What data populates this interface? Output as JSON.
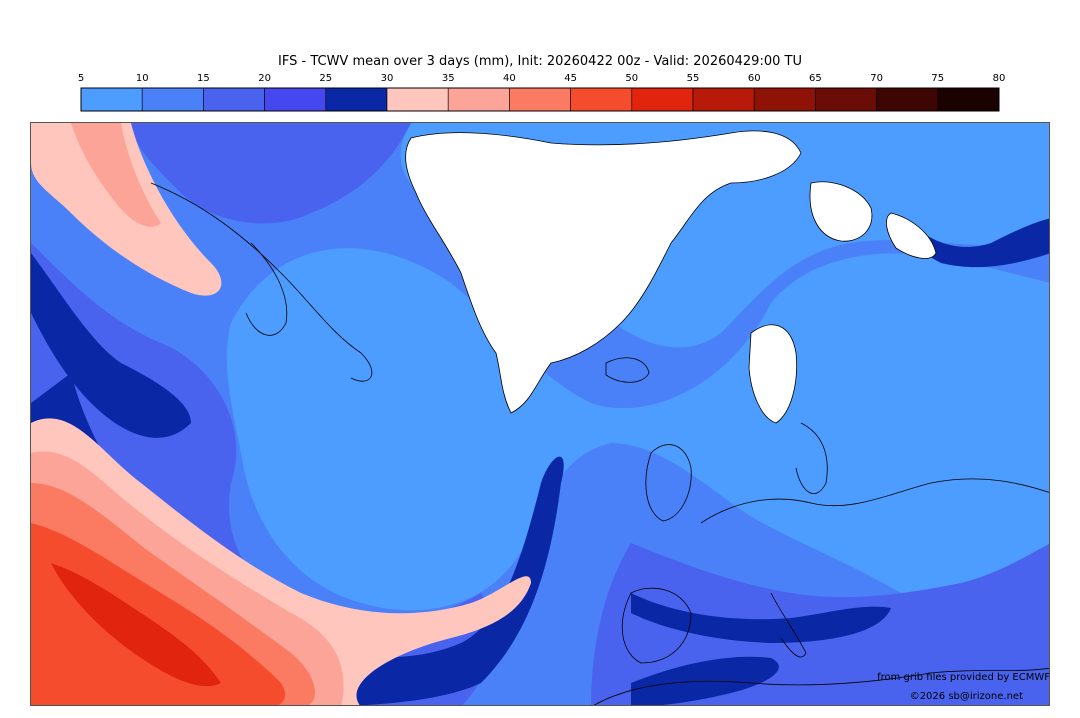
{
  "title": "IFS - TCWV mean over 3 days (mm), Init: 20260422 00z - Valid: 20260429:00 TU",
  "colorbar": {
    "ticks": [
      "5",
      "10",
      "15",
      "20",
      "25",
      "30",
      "35",
      "40",
      "45",
      "50",
      "55",
      "60",
      "65",
      "70",
      "75",
      "80"
    ],
    "colors": [
      "#4d9cff",
      "#4a80f8",
      "#4a63ee",
      "#4548ee",
      "#0a28a6",
      "#ffc6be",
      "#fda498",
      "#fb7a62",
      "#f64c2e",
      "#e0240e",
      "#b81a0a",
      "#8e1206",
      "#6a0d06",
      "#3e0603",
      "#1a0200"
    ]
  },
  "map": {
    "palette": {
      "ocean_low": "#4d9cff",
      "ocean_mid": "#4a80f8",
      "ocean_dark": "#4a63ee",
      "deep": "#0a28a6",
      "pink": "#ffc6be",
      "salmon": "#fda498",
      "orange": "#fb7a62",
      "red": "#f64c2e",
      "deep_red": "#e0240e",
      "no_data": "#ffffff",
      "coast": "#000000"
    }
  },
  "credits": {
    "source": "from grib files provided by ECMWF",
    "copyright": "©2026 sb@irizone.net"
  }
}
